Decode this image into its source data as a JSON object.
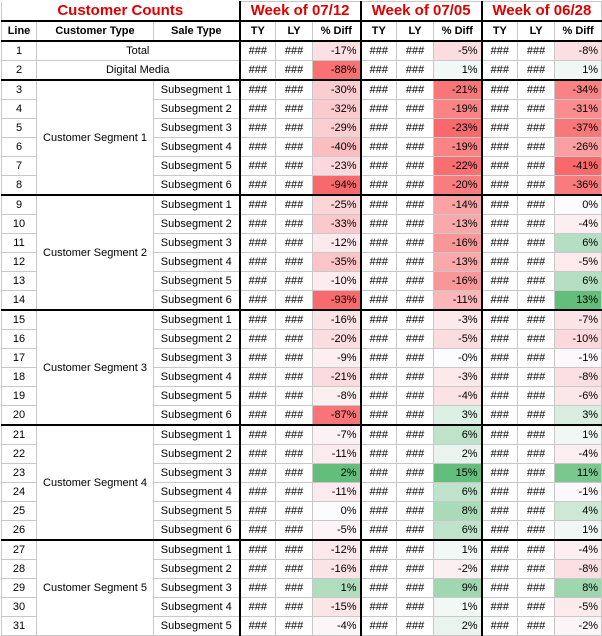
{
  "title": "Customer Counts",
  "weeks": [
    "Week of 07/12",
    "Week of 07/05",
    "Week of 06/28"
  ],
  "columns": {
    "line": "Line",
    "customer_type": "Customer Type",
    "sale_type": "Sale Type",
    "ty": "TY",
    "ly": "LY",
    "diff": "% Diff"
  },
  "placeholder_value": "###",
  "colors": {
    "title_red": "#e00000",
    "negative_strong": "#f8696b",
    "neutral": "#fcfcff",
    "positive_strong": "#63be7b"
  },
  "rows": [
    {
      "line": "1",
      "label": "Total",
      "diffs": [
        "-17%",
        "-5%",
        "-8%"
      ]
    },
    {
      "line": "2",
      "label": "Digital Media",
      "diffs": [
        "-88%",
        "1%",
        "1%"
      ]
    },
    {
      "line": "3",
      "segment": "Customer Segment 1",
      "sale": "Subsegment 1",
      "diffs": [
        "-30%",
        "-21%",
        "-34%"
      ]
    },
    {
      "line": "4",
      "segment": "Customer Segment 1",
      "sale": "Subsegment 2",
      "diffs": [
        "-32%",
        "-19%",
        "-31%"
      ]
    },
    {
      "line": "5",
      "segment": "Customer Segment 1",
      "sale": "Subsegment 3",
      "diffs": [
        "-29%",
        "-23%",
        "-37%"
      ]
    },
    {
      "line": "6",
      "segment": "Customer Segment 1",
      "sale": "Subsegment 4",
      "diffs": [
        "-40%",
        "-19%",
        "-26%"
      ]
    },
    {
      "line": "7",
      "segment": "Customer Segment 1",
      "sale": "Subsegment 5",
      "diffs": [
        "-23%",
        "-22%",
        "-41%"
      ]
    },
    {
      "line": "8",
      "segment": "Customer Segment 1",
      "sale": "Subsegment 6",
      "diffs": [
        "-94%",
        "-20%",
        "-36%"
      ]
    },
    {
      "line": "9",
      "segment": "Customer Segment 2",
      "sale": "Subsegment 1",
      "diffs": [
        "-25%",
        "-14%",
        "0%"
      ]
    },
    {
      "line": "10",
      "segment": "Customer Segment 2",
      "sale": "Subsegment 2",
      "diffs": [
        "-33%",
        "-13%",
        "-4%"
      ]
    },
    {
      "line": "11",
      "segment": "Customer Segment 2",
      "sale": "Subsegment 3",
      "diffs": [
        "-12%",
        "-16%",
        "6%"
      ]
    },
    {
      "line": "12",
      "segment": "Customer Segment 2",
      "sale": "Subsegment 4",
      "diffs": [
        "-35%",
        "-13%",
        "-5%"
      ]
    },
    {
      "line": "13",
      "segment": "Customer Segment 2",
      "sale": "Subsegment 5",
      "diffs": [
        "-10%",
        "-16%",
        "6%"
      ]
    },
    {
      "line": "14",
      "segment": "Customer Segment 2",
      "sale": "Subsegment 6",
      "diffs": [
        "-93%",
        "-11%",
        "13%"
      ]
    },
    {
      "line": "15",
      "segment": "Customer Segment 3",
      "sale": "Subsegment 1",
      "diffs": [
        "-16%",
        "-3%",
        "-7%"
      ]
    },
    {
      "line": "16",
      "segment": "Customer Segment 3",
      "sale": "Subsegment 2",
      "diffs": [
        "-20%",
        "-5%",
        "-10%"
      ]
    },
    {
      "line": "17",
      "segment": "Customer Segment 3",
      "sale": "Subsegment 3",
      "diffs": [
        "-9%",
        "-0%",
        "-1%"
      ]
    },
    {
      "line": "18",
      "segment": "Customer Segment 3",
      "sale": "Subsegment 4",
      "diffs": [
        "-21%",
        "-3%",
        "-8%"
      ]
    },
    {
      "line": "19",
      "segment": "Customer Segment 3",
      "sale": "Subsegment 5",
      "diffs": [
        "-8%",
        "-4%",
        "-6%"
      ]
    },
    {
      "line": "20",
      "segment": "Customer Segment 3",
      "sale": "Subsegment 6",
      "diffs": [
        "-87%",
        "3%",
        "3%"
      ]
    },
    {
      "line": "21",
      "segment": "Customer Segment 4",
      "sale": "Subsegment 1",
      "diffs": [
        "-7%",
        "6%",
        "1%"
      ]
    },
    {
      "line": "22",
      "segment": "Customer Segment 4",
      "sale": "Subsegment 2",
      "diffs": [
        "-11%",
        "2%",
        "-4%"
      ]
    },
    {
      "line": "23",
      "segment": "Customer Segment 4",
      "sale": "Subsegment 3",
      "diffs": [
        "2%",
        "15%",
        "11%"
      ]
    },
    {
      "line": "24",
      "segment": "Customer Segment 4",
      "sale": "Subsegment 4",
      "diffs": [
        "-11%",
        "6%",
        "-1%"
      ]
    },
    {
      "line": "25",
      "segment": "Customer Segment 4",
      "sale": "Subsegment 5",
      "diffs": [
        "0%",
        "8%",
        "4%"
      ]
    },
    {
      "line": "26",
      "segment": "Customer Segment 4",
      "sale": "Subsegment 6",
      "diffs": [
        "-5%",
        "6%",
        "1%"
      ]
    },
    {
      "line": "27",
      "segment": "Customer Segment 5",
      "sale": "Subsegment 1",
      "diffs": [
        "-12%",
        "1%",
        "-4%"
      ]
    },
    {
      "line": "28",
      "segment": "Customer Segment 5",
      "sale": "Subsegment 2",
      "diffs": [
        "-16%",
        "-2%",
        "-8%"
      ]
    },
    {
      "line": "29",
      "segment": "Customer Segment 5",
      "sale": "Subsegment 3",
      "diffs": [
        "1%",
        "9%",
        "8%"
      ]
    },
    {
      "line": "30",
      "segment": "Customer Segment 5",
      "sale": "Subsegment 4",
      "diffs": [
        "-15%",
        "1%",
        "-5%"
      ]
    },
    {
      "line": "31",
      "segment": "Customer Segment 5",
      "sale": "Subsegment 5",
      "diffs": [
        "-4%",
        "2%",
        "-2%"
      ]
    }
  ]
}
